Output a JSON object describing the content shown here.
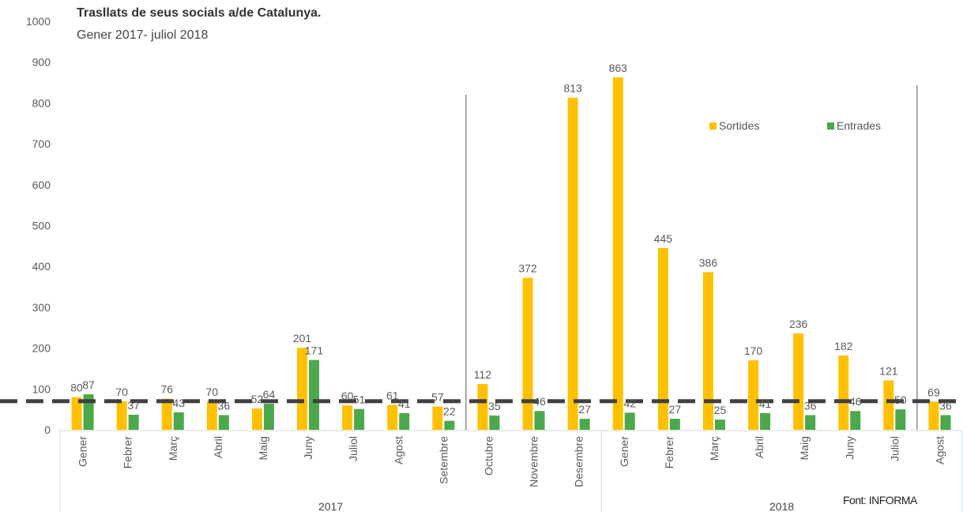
{
  "chart_data": {
    "type": "bar",
    "title": "Trasllats de seus socials a/de Catalunya.",
    "subtitle": "Gener 2017- juliol 2018",
    "source": "Font: INFORMA",
    "ylim": [
      0,
      1000
    ],
    "yticks": [
      0,
      100,
      200,
      300,
      400,
      500,
      600,
      700,
      800,
      900,
      1000
    ],
    "categories": [
      "Gener",
      "Febrer",
      "Març",
      "Abril",
      "Maig",
      "Juny",
      "Juliol",
      "Agost",
      "Setembre",
      "Octubre",
      "Novembre",
      "Desembre",
      "Gener",
      "Febrer",
      "Març",
      "Abril",
      "Maig",
      "Juny",
      "Juliol",
      "Agost"
    ],
    "groups": [
      {
        "label": "2017",
        "from": 0,
        "to": 11
      },
      {
        "label": "2018",
        "from": 12,
        "to": 19
      }
    ],
    "series": [
      {
        "name": "Sortides",
        "color": "#FFC000",
        "values": [
          80,
          70,
          76,
          70,
          52,
          201,
          60,
          61,
          57,
          112,
          372,
          813,
          863,
          445,
          386,
          170,
          236,
          182,
          121,
          69
        ]
      },
      {
        "name": "Entrades",
        "color": "#4CA84C",
        "values": [
          87,
          37,
          43,
          36,
          64,
          171,
          51,
          41,
          22,
          35,
          46,
          27,
          42,
          27,
          25,
          41,
          36,
          46,
          50,
          36
        ]
      }
    ],
    "reference_line": {
      "value": 70,
      "style": "dashed",
      "color": "#404040"
    },
    "legend": "top-right"
  }
}
